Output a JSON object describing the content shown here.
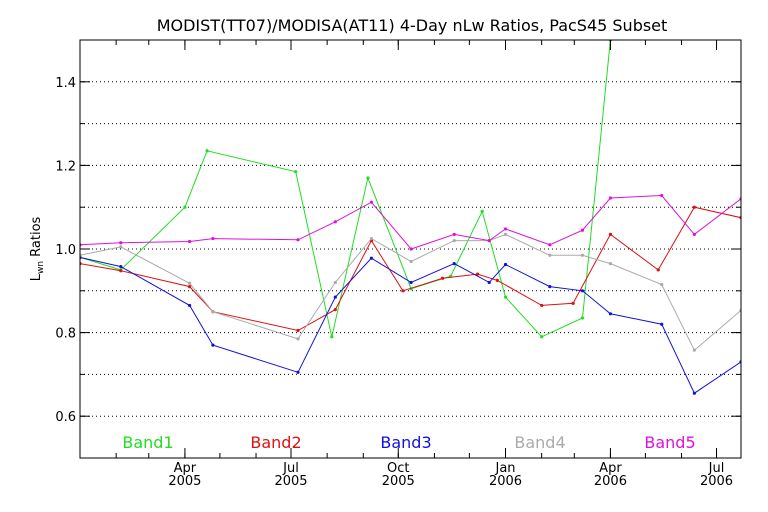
{
  "chart_data": {
    "type": "line",
    "title": "MODIST(TT07)/MODISA(AT11) 4-Day nLw Ratios, PacS45 Subset",
    "ylabel": "Lwn Ratios",
    "ylabel_main": "L",
    "ylabel_sub": "wn",
    "ylabel_rest": " Ratios",
    "xlim": [
      "2005-01-01",
      "2006-07-22"
    ],
    "ylim": [
      0.5,
      1.5
    ],
    "grid": "horizontal dotted",
    "legend_placement": "bottom",
    "y_ticks": [
      {
        "value": 0.6,
        "label": "0.6"
      },
      {
        "value": 0.8,
        "label": "0.8"
      },
      {
        "value": 1.0,
        "label": "1.0"
      },
      {
        "value": 1.2,
        "label": "1.2"
      },
      {
        "value": 1.4,
        "label": "1.4"
      }
    ],
    "x_ticks": [
      {
        "date": "2005-04-01",
        "label_top": "Apr",
        "label_bottom": "2005"
      },
      {
        "date": "2005-07-01",
        "label_top": "Jul",
        "label_bottom": "2005"
      },
      {
        "date": "2005-10-01",
        "label_top": "Oct",
        "label_bottom": "2005"
      },
      {
        "date": "2006-01-01",
        "label_top": "Jan",
        "label_bottom": "2006"
      },
      {
        "date": "2006-04-01",
        "label_top": "Apr",
        "label_bottom": "2006"
      },
      {
        "date": "2006-07-01",
        "label_top": "Jul",
        "label_bottom": "2006"
      }
    ],
    "x": [
      "2005-01-01",
      "2005-02-05",
      "2005-04-01",
      "2005-05-15",
      "2005-07-20",
      "2005-08-22",
      "2005-09-22",
      "2005-10-22",
      "2005-11-20",
      "2005-12-22",
      "2006-01-05",
      "2006-02-05",
      "2006-03-15",
      "2006-04-05",
      "2006-05-15",
      "2006-06-10",
      "2006-07-22"
    ],
    "series": [
      {
        "name": "Band1",
        "color": "#22dd22",
        "points": [
          {
            "x": "2005-01-01",
            "y": 0.98
          },
          {
            "x": "2005-02-05",
            "y": 0.95
          },
          {
            "x": "2005-04-01",
            "y": 1.1
          },
          {
            "x": "2005-04-20",
            "y": 1.235
          },
          {
            "x": "2005-07-05",
            "y": 1.185
          },
          {
            "x": "2005-08-05",
            "y": 0.79
          },
          {
            "x": "2005-09-05",
            "y": 1.17
          },
          {
            "x": "2005-10-12",
            "y": 0.905
          },
          {
            "x": "2005-11-15",
            "y": 0.935
          },
          {
            "x": "2005-12-12",
            "y": 1.09
          },
          {
            "x": "2006-01-01",
            "y": 0.885
          },
          {
            "x": "2006-02-01",
            "y": 0.79
          },
          {
            "x": "2006-03-08",
            "y": 0.835
          },
          {
            "x": "2006-04-01",
            "y": 1.5
          }
        ]
      },
      {
        "name": "Band2",
        "color": "#dd1111",
        "points": [
          {
            "x": "2005-01-01",
            "y": 0.965
          },
          {
            "x": "2005-02-05",
            "y": 0.948
          },
          {
            "x": "2005-04-05",
            "y": 0.91
          },
          {
            "x": "2005-04-25",
            "y": 0.85
          },
          {
            "x": "2005-07-07",
            "y": 0.805
          },
          {
            "x": "2005-08-08",
            "y": 0.855
          },
          {
            "x": "2005-09-08",
            "y": 1.02
          },
          {
            "x": "2005-10-05",
            "y": 0.9
          },
          {
            "x": "2005-11-08",
            "y": 0.93
          },
          {
            "x": "2005-12-08",
            "y": 0.94
          },
          {
            "x": "2005-12-25",
            "y": 0.925
          },
          {
            "x": "2006-02-01",
            "y": 0.865
          },
          {
            "x": "2006-02-28",
            "y": 0.87
          },
          {
            "x": "2006-04-01",
            "y": 1.035
          },
          {
            "x": "2006-05-12",
            "y": 0.95
          },
          {
            "x": "2006-06-12",
            "y": 1.1
          },
          {
            "x": "2006-07-22",
            "y": 1.075
          }
        ]
      },
      {
        "name": "Band3",
        "color": "#1111dd",
        "points": [
          {
            "x": "2005-01-01",
            "y": 0.98
          },
          {
            "x": "2005-02-05",
            "y": 0.958
          },
          {
            "x": "2005-04-05",
            "y": 0.865
          },
          {
            "x": "2005-04-25",
            "y": 0.77
          },
          {
            "x": "2005-07-07",
            "y": 0.705
          },
          {
            "x": "2005-08-08",
            "y": 0.885
          },
          {
            "x": "2005-09-08",
            "y": 0.978
          },
          {
            "x": "2005-10-12",
            "y": 0.92
          },
          {
            "x": "2005-11-18",
            "y": 0.965
          },
          {
            "x": "2005-12-18",
            "y": 0.92
          },
          {
            "x": "2006-01-01",
            "y": 0.963
          },
          {
            "x": "2006-02-08",
            "y": 0.91
          },
          {
            "x": "2006-03-08",
            "y": 0.9
          },
          {
            "x": "2006-04-01",
            "y": 0.845
          },
          {
            "x": "2006-05-15",
            "y": 0.82
          },
          {
            "x": "2006-06-12",
            "y": 0.655
          },
          {
            "x": "2006-07-22",
            "y": 0.73
          }
        ]
      },
      {
        "name": "Band4",
        "color": "#aaaaaa",
        "points": [
          {
            "x": "2005-01-01",
            "y": 0.985
          },
          {
            "x": "2005-02-05",
            "y": 1.005
          },
          {
            "x": "2005-04-05",
            "y": 0.918
          },
          {
            "x": "2005-04-25",
            "y": 0.85
          },
          {
            "x": "2005-07-07",
            "y": 0.785
          },
          {
            "x": "2005-08-08",
            "y": 0.92
          },
          {
            "x": "2005-09-08",
            "y": 1.025
          },
          {
            "x": "2005-10-12",
            "y": 0.97
          },
          {
            "x": "2005-11-18",
            "y": 1.02
          },
          {
            "x": "2005-12-18",
            "y": 1.02
          },
          {
            "x": "2006-01-01",
            "y": 1.035
          },
          {
            "x": "2006-02-08",
            "y": 0.985
          },
          {
            "x": "2006-03-08",
            "y": 0.985
          },
          {
            "x": "2006-04-01",
            "y": 0.965
          },
          {
            "x": "2006-05-15",
            "y": 0.915
          },
          {
            "x": "2006-06-12",
            "y": 0.758
          },
          {
            "x": "2006-07-22",
            "y": 0.853
          }
        ]
      },
      {
        "name": "Band5",
        "color": "#dd11dd",
        "points": [
          {
            "x": "2005-01-01",
            "y": 1.01
          },
          {
            "x": "2005-02-05",
            "y": 1.015
          },
          {
            "x": "2005-04-05",
            "y": 1.018
          },
          {
            "x": "2005-04-25",
            "y": 1.025
          },
          {
            "x": "2005-07-07",
            "y": 1.022
          },
          {
            "x": "2005-08-08",
            "y": 1.065
          },
          {
            "x": "2005-09-08",
            "y": 1.112
          },
          {
            "x": "2005-10-12",
            "y": 1.0
          },
          {
            "x": "2005-11-18",
            "y": 1.035
          },
          {
            "x": "2005-12-18",
            "y": 1.02
          },
          {
            "x": "2006-01-01",
            "y": 1.048
          },
          {
            "x": "2006-02-08",
            "y": 1.01
          },
          {
            "x": "2006-03-08",
            "y": 1.045
          },
          {
            "x": "2006-04-01",
            "y": 1.122
          },
          {
            "x": "2006-05-15",
            "y": 1.128
          },
          {
            "x": "2006-06-12",
            "y": 1.035
          },
          {
            "x": "2006-07-22",
            "y": 1.12
          }
        ]
      }
    ]
  }
}
